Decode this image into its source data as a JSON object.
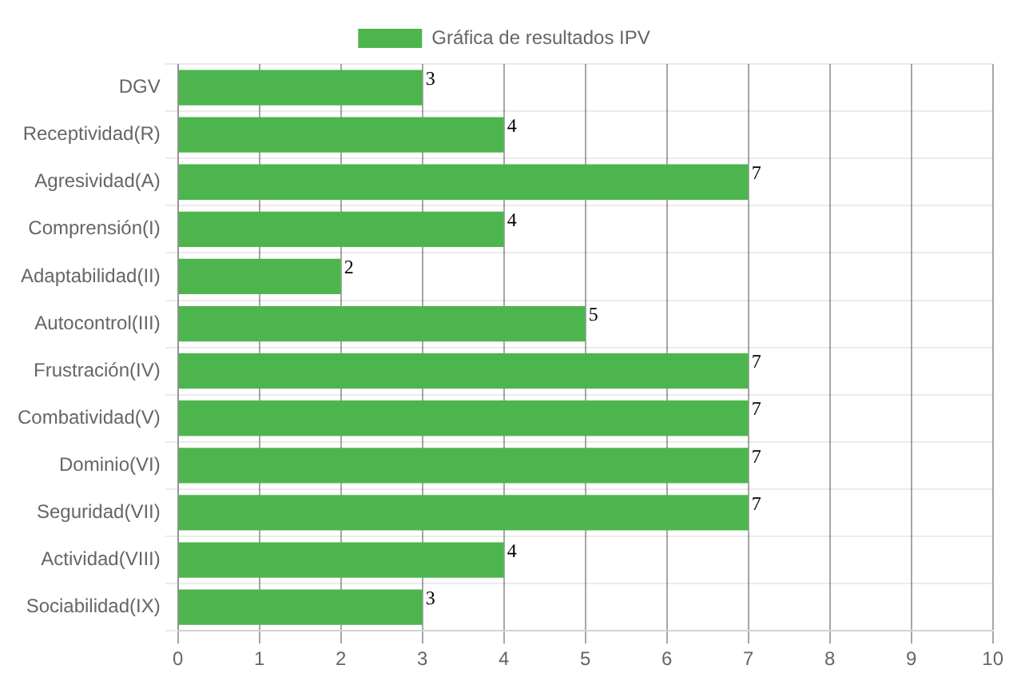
{
  "chart_data": {
    "type": "bar",
    "orientation": "horizontal",
    "categories": [
      "DGV",
      "Receptividad(R)",
      "Agresividad(A)",
      "Comprensión(I)",
      "Adaptabilidad(II)",
      "Autocontrol(III)",
      "Frustración(IV)",
      "Combatividad(V)",
      "Dominio(VI)",
      "Seguridad(VII)",
      "Actividad(VIII)",
      "Sociabilidad(IX)"
    ],
    "series": [
      {
        "name": "Gráfica de resultados IPV",
        "color": "#4db54d",
        "values": [
          3,
          4,
          7,
          4,
          2,
          5,
          7,
          7,
          7,
          7,
          4,
          3
        ]
      }
    ],
    "xlim": [
      0,
      10
    ],
    "xticks": [
      0,
      1,
      2,
      3,
      4,
      5,
      6,
      7,
      8,
      9,
      10
    ],
    "grid": true,
    "legend": "top",
    "data_labels": true
  }
}
